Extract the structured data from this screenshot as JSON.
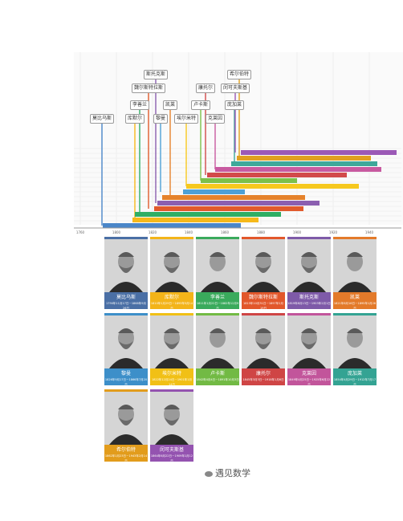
{
  "axis_ticks": [
    "1760",
    "1800",
    "1820",
    "1840",
    "1860",
    "1880",
    "1900",
    "1920",
    "1940"
  ],
  "labels": [
    {
      "text": "莫比乌斯",
      "color": "#4a86c8"
    },
    {
      "text": "库默尔",
      "color": "#f6b91a"
    },
    {
      "text": "李善兰",
      "color": "#2fae64"
    },
    {
      "text": "魏尔斯特拉斯",
      "color": "#e15a2c"
    },
    {
      "text": "斯托克斯",
      "color": "#8b5fb0"
    },
    {
      "text": "凯莱",
      "color": "#e5822b"
    },
    {
      "text": "黎曼",
      "color": "#4da0d6"
    },
    {
      "text": "埃尔米特",
      "color": "#f6c81e"
    },
    {
      "text": "卢卡斯",
      "color": "#7cc04a"
    },
    {
      "text": "康托尔",
      "color": "#d24a4a"
    },
    {
      "text": "克莱因",
      "color": "#c85aa0"
    },
    {
      "text": "庞加莱",
      "color": "#3ea89a"
    },
    {
      "text": "希尔伯特",
      "color": "#e0a020"
    },
    {
      "text": "闵可夫斯基",
      "color": "#9b59b6"
    }
  ],
  "people": [
    {
      "name": "莫比乌斯",
      "years": "1790年11月17日－1868年9月26日",
      "color": "#4a6fa5"
    },
    {
      "name": "库默尔",
      "years": "1810年1月29日－1893年5月14日",
      "color": "#f3b419"
    },
    {
      "name": "李善兰",
      "years": "1811年1月22日－1882年12月9日",
      "color": "#3aaa5c"
    },
    {
      "name": "魏尔斯特拉斯",
      "years": "1815年10月31日－1897年2月19日",
      "color": "#e2572b"
    },
    {
      "name": "斯托克斯",
      "years": "1819年8月13日－1903年2月1日",
      "color": "#7e5aa8"
    },
    {
      "name": "凯莱",
      "years": "1821年8月16日－1895年1月26日",
      "color": "#e37a2a"
    },
    {
      "name": "黎曼",
      "years": "1826年9月17日－1866年7月20日",
      "color": "#3d8fc9"
    },
    {
      "name": "埃尔米特",
      "years": "1822年12月24日－1901年1月14日",
      "color": "#f1c016"
    },
    {
      "name": "卢卡斯",
      "years": "1842年4月4日－1891年10月3日",
      "color": "#72ba44"
    },
    {
      "name": "康托尔",
      "years": "1845年3月3日－1918年1月6日",
      "color": "#cf4545"
    },
    {
      "name": "克莱因",
      "years": "1849年4月25日－1925年6月22日",
      "color": "#c2559b"
    },
    {
      "name": "庞加莱",
      "years": "1854年4月29日－1912年7月17日",
      "color": "#34a393"
    },
    {
      "name": "希尔伯特",
      "years": "1862年1月23日－1943年2月14日",
      "color": "#e29c1c"
    },
    {
      "name": "闵可夫斯基",
      "years": "1864年6月22日－1909年1月12日",
      "color": "#9453b0"
    }
  ],
  "watermark": "遇见数学"
}
